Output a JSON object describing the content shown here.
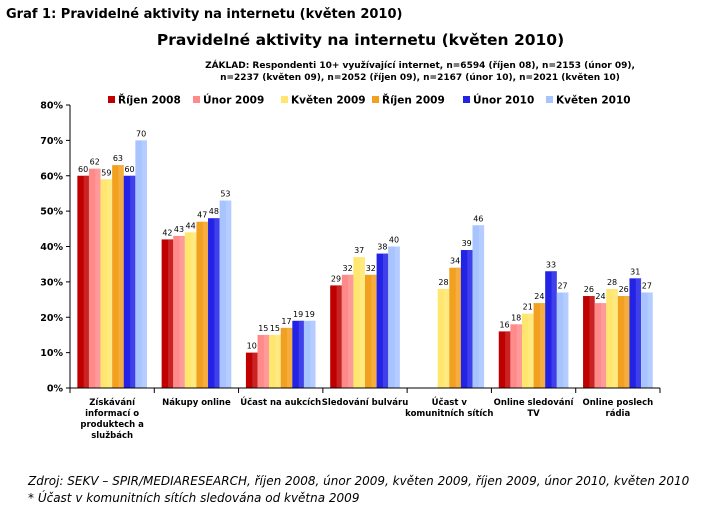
{
  "caption": "Graf 1: Pravidelné aktivity na internetu (květen 2010)",
  "basis": "ZÁKLAD: Respondenti 10+ využívající internet, n=6594 (říjen 08), n=2153 (únor 09), n=2237 (květen 09), n=2052 (říjen 09), n=2167 (únor 10), n=2021 (květen 10)",
  "source": "Zdroj: SEKV – SPIR/MEDIARESEARCH, říjen 2008, únor 2009, květen 2009, říjen 2009, únor 2010, květen 2010",
  "note": "* Účast v komunitních sítích sledována od května 2009",
  "chart_data": {
    "type": "bar",
    "title": "Pravidelné aktivity na internetu (květen 2010)",
    "xlabel": "",
    "ylabel": "",
    "ylim": [
      0,
      80
    ],
    "y_ticks": [
      "0%",
      "10%",
      "20%",
      "30%",
      "40%",
      "50%",
      "60%",
      "70%",
      "80%"
    ],
    "grid": false,
    "legend_position": "top",
    "categories": [
      [
        "Získávání",
        "informací o",
        "produktech a",
        "službách"
      ],
      [
        "Nákupy online"
      ],
      [
        "Účast na aukcích"
      ],
      [
        "Sledování bulváru"
      ],
      [
        "Účast v",
        "komunitních sítích"
      ],
      [
        "Online sledování",
        "TV"
      ],
      [
        "Online poslech",
        "rádia"
      ]
    ],
    "series": [
      {
        "name": "Říjen 2008",
        "color": "#c00000",
        "values": [
          60,
          42,
          10,
          29,
          null,
          16,
          26
        ]
      },
      {
        "name": "Únor 2009",
        "color": "#ff8a8a",
        "values": [
          62,
          43,
          15,
          32,
          null,
          18,
          24
        ]
      },
      {
        "name": "Květen 2009",
        "color": "#ffe66e",
        "values": [
          59,
          44,
          15,
          37,
          28,
          21,
          28
        ]
      },
      {
        "name": "Říjen 2009",
        "color": "#f2a020",
        "values": [
          63,
          47,
          17,
          32,
          34,
          24,
          26
        ]
      },
      {
        "name": "Únor 2010",
        "color": "#2323e6",
        "values": [
          60,
          48,
          19,
          38,
          39,
          33,
          31
        ]
      },
      {
        "name": "Květen 2010",
        "color": "#a8c4ff",
        "values": [
          70,
          53,
          19,
          40,
          46,
          27,
          27
        ]
      }
    ]
  }
}
